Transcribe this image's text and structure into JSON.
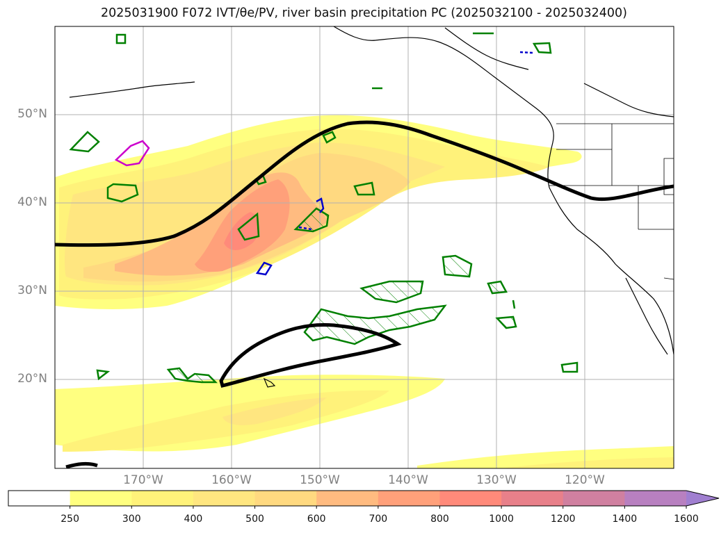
{
  "title": "2025031900 F072 IVT/θe/PV, river basin precipitation PC (2025032100 - 2025032400)",
  "map": {
    "projection": "PlateCarree",
    "lon_range": [
      -180,
      -110
    ],
    "lat_range": [
      10,
      60
    ],
    "lat_labels": [
      "50°N",
      "40°N",
      "30°N",
      "20°N"
    ],
    "lon_labels": [
      "170°W",
      "160°W",
      "150°W",
      "140°W",
      "130°W",
      "120°W"
    ],
    "gridlines": true,
    "coastline_color": "#000000",
    "theta_e_contour_color": "#000000",
    "pv_contour_colors": {
      "green": "#008000",
      "blue": "#0000cc",
      "magenta": "#cc00cc"
    }
  },
  "colorbar": {
    "levels": [
      "250",
      "300",
      "400",
      "500",
      "600",
      "700",
      "800",
      "1000",
      "1200",
      "1400",
      "1600"
    ],
    "colors": [
      "#ffffff",
      "#ffff80",
      "#fff27a",
      "#ffe680",
      "#ffd980",
      "#ffbb80",
      "#ffa07a",
      "#ff8a7a",
      "#e8808a",
      "#d080a0",
      "#b880c0",
      "#a07fd0"
    ],
    "extend": "max"
  }
}
